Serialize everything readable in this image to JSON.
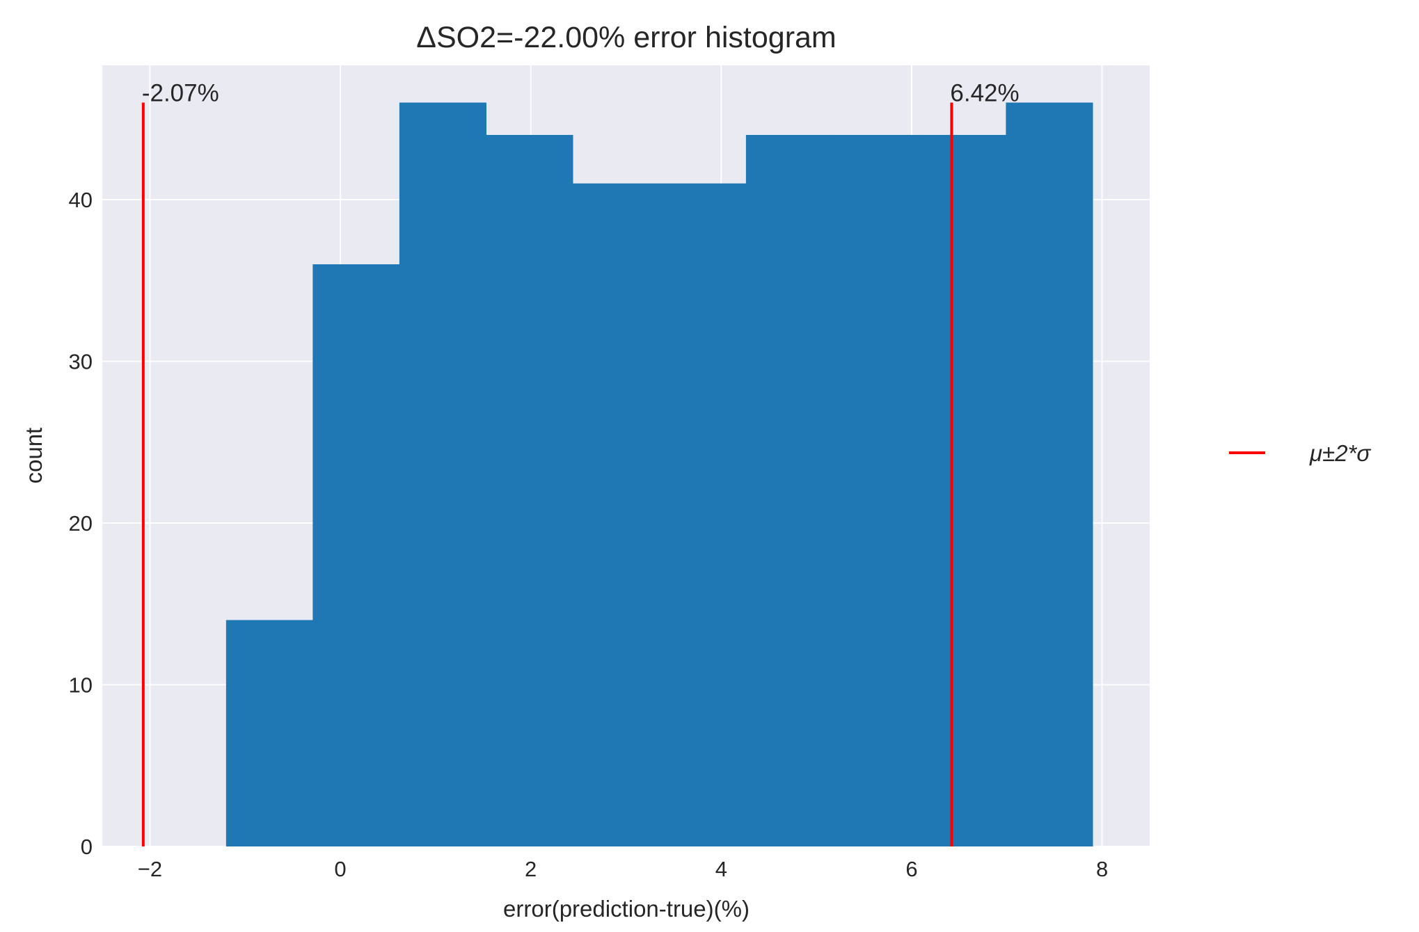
{
  "chart_data": {
    "type": "bar",
    "title": "ΔSO2=-22.00% error histogram",
    "xlabel": "error(prediction-true)(%)",
    "ylabel": "count",
    "xlim": [
      -2.5,
      8.5
    ],
    "ylim": [
      0,
      48.3
    ],
    "x_ticks": [
      -2,
      0,
      2,
      4,
      6,
      8
    ],
    "x_tick_labels": [
      "−2",
      "0",
      "2",
      "4",
      "6",
      "8"
    ],
    "y_ticks": [
      0,
      10,
      20,
      30,
      40
    ],
    "y_tick_labels": [
      "0",
      "10",
      "20",
      "30",
      "40"
    ],
    "grid": true,
    "colors": {
      "bars": "#1f77b4",
      "lines": "#ff0000",
      "plot_background": "#eaeaf2",
      "grid": "#ffffff"
    },
    "bins": [
      {
        "x0": -1.2,
        "x1": -0.29,
        "count": 14
      },
      {
        "x0": -0.29,
        "x1": 0.62,
        "count": 36
      },
      {
        "x0": 0.62,
        "x1": 1.53,
        "count": 46
      },
      {
        "x0": 1.53,
        "x1": 2.44,
        "count": 44
      },
      {
        "x0": 2.44,
        "x1": 3.35,
        "count": 41
      },
      {
        "x0": 3.35,
        "x1": 4.26,
        "count": 41
      },
      {
        "x0": 4.26,
        "x1": 5.17,
        "count": 44
      },
      {
        "x0": 5.17,
        "x1": 6.08,
        "count": 44
      },
      {
        "x0": 6.08,
        "x1": 6.99,
        "count": 44
      },
      {
        "x0": 6.99,
        "x1": 7.9,
        "count": 46
      }
    ],
    "vlines": [
      {
        "x": -2.07,
        "ymax": 46,
        "label": "-2.07%"
      },
      {
        "x": 6.42,
        "ymax": 46,
        "label": "6.42%"
      }
    ],
    "legend": {
      "placement": "center-right-outside",
      "entries": [
        {
          "label": "μ±2*σ",
          "color": "#ff0000"
        }
      ]
    }
  }
}
